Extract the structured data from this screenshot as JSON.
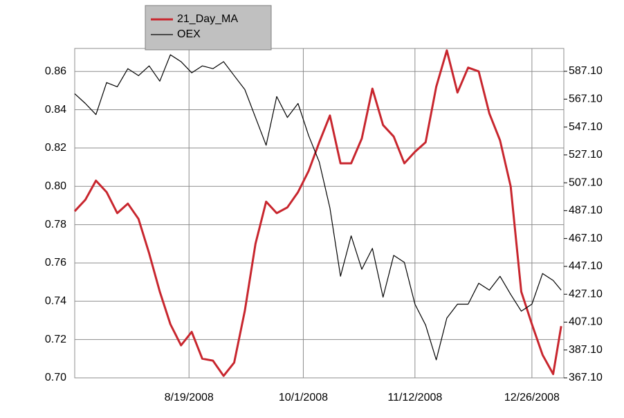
{
  "chart_data": {
    "type": "line",
    "x": [
      "7/7/2008",
      "7/11/2008",
      "7/15/2008",
      "7/19/2008",
      "7/23/2008",
      "7/27/2008",
      "7/31/2008",
      "8/4/2008",
      "8/8/2008",
      "8/12/2008",
      "8/16/2008",
      "8/20/2008",
      "8/24/2008",
      "8/28/2008",
      "9/1/2008",
      "9/5/2008",
      "9/9/2008",
      "9/13/2008",
      "9/17/2008",
      "9/21/2008",
      "9/25/2008",
      "9/29/2008",
      "10/3/2008",
      "10/7/2008",
      "10/11/2008",
      "10/15/2008",
      "10/19/2008",
      "10/23/2008",
      "10/27/2008",
      "10/31/2008",
      "11/4/2008",
      "11/8/2008",
      "11/12/2008",
      "11/16/2008",
      "11/20/2008",
      "11/24/2008",
      "11/28/2008",
      "12/2/2008",
      "12/6/2008",
      "12/10/2008",
      "12/14/2008",
      "12/18/2008",
      "12/22/2008",
      "12/26/2008",
      "12/30/2008",
      "1/3/2009",
      "1/6/2009"
    ],
    "series": [
      {
        "name": "21_Day_MA",
        "color": "#c8262e",
        "values": [
          0.787,
          0.793,
          0.803,
          0.797,
          0.786,
          0.791,
          0.783,
          0.765,
          0.745,
          0.728,
          0.717,
          0.724,
          0.71,
          0.709,
          0.701,
          0.708,
          0.735,
          0.77,
          0.792,
          0.786,
          0.789,
          0.797,
          0.808,
          0.823,
          0.837,
          0.812,
          0.812,
          0.825,
          0.851,
          0.832,
          0.826,
          0.812,
          0.818,
          0.823,
          0.852,
          0.871,
          0.849,
          0.862,
          0.86,
          0.838,
          0.824,
          0.8,
          0.745,
          0.728,
          0.712,
          0.702,
          0.727
        ]
      },
      {
        "name": "OEX",
        "color": "#000000",
        "axis": "y2",
        "values": [
          571,
          564,
          556,
          579,
          576,
          589,
          584,
          591,
          580,
          599,
          594,
          586,
          591,
          589,
          594,
          584,
          574,
          554,
          534,
          569,
          554,
          564,
          541,
          522,
          489,
          440,
          469,
          445,
          460,
          425,
          455,
          450,
          420,
          405,
          380,
          410,
          420,
          420,
          435,
          430,
          440,
          427,
          415,
          420,
          442,
          437,
          430
        ]
      }
    ],
    "xlim": [
      "7/7/2008",
      "1/7/2009"
    ],
    "xticks": [
      "8/19/2008",
      "10/1/2008",
      "11/12/2008",
      "12/26/2008"
    ],
    "ylim": [
      0.7,
      0.872
    ],
    "yticks": [
      {
        "value": 0.7,
        "label": "0.70"
      },
      0.72,
      0.74,
      0.76,
      0.78,
      {
        "value": 0.8,
        "label": "0.80"
      },
      0.82,
      0.84,
      0.86
    ],
    "y2lim": [
      367.1,
      603.5
    ],
    "y2ticks": [
      {
        "value": 367.1,
        "label": "367.10"
      },
      {
        "value": 387.1,
        "label": "387.10"
      },
      {
        "value": 407.1,
        "label": "407.10"
      },
      {
        "value": 427.1,
        "label": "427.10"
      },
      {
        "value": 447.1,
        "label": "447.10"
      },
      {
        "value": 467.1,
        "label": "467.10"
      },
      {
        "value": 487.1,
        "label": "487.10"
      },
      {
        "value": 507.1,
        "label": "507.10"
      },
      {
        "value": 527.1,
        "label": "527.10"
      },
      {
        "value": 547.1,
        "label": "547.10"
      },
      {
        "value": 567.1,
        "label": "567.10"
      },
      {
        "value": 587.1,
        "label": "587.10"
      }
    ],
    "grid": true
  }
}
